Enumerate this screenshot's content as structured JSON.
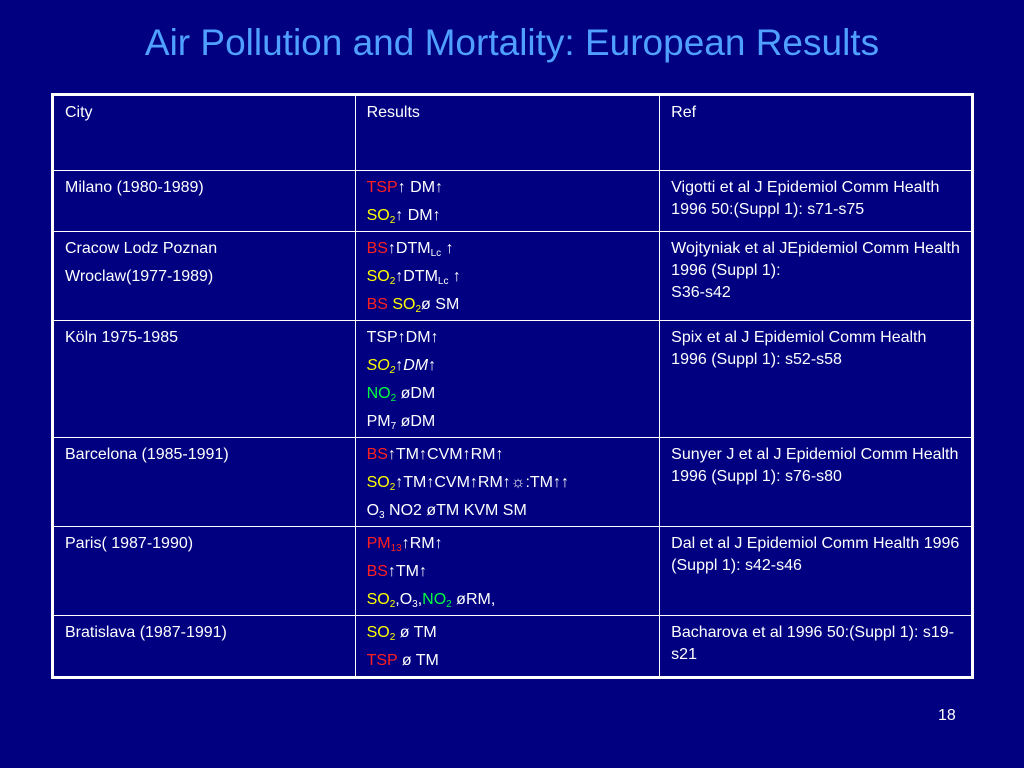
{
  "title": "Air Pollution and Mortality: European Results",
  "headers": {
    "city": "City",
    "results": "Results",
    "ref": "Ref"
  },
  "rows": [
    {
      "city": [
        "Milano (1980-1989)"
      ],
      "results": [
        [
          {
            "t": "TSP",
            "c": "red"
          },
          {
            "t": "↑ DM↑"
          }
        ],
        [
          {
            "t": "SO",
            "c": "yel"
          },
          {
            "t": "2",
            "c": "yel",
            "sub": true
          },
          {
            "t": "↑ DM↑"
          }
        ]
      ],
      "ref": [
        "Vigotti et al J Epidemiol Comm Health 1996 50:(Suppl 1): s71-s75"
      ]
    },
    {
      "city": [
        "Cracow Lodz Poznan",
        "Wroclaw(1977-1989)"
      ],
      "results": [
        [
          {
            "t": "BS",
            "c": "red"
          },
          {
            "t": "↑DTM"
          },
          {
            "t": "Lc",
            "sub": true
          },
          {
            "t": " ↑"
          }
        ],
        [
          {
            "t": "SO",
            "c": "yel"
          },
          {
            "t": "2",
            "c": "yel",
            "sub": true
          },
          {
            "t": "↑DTM"
          },
          {
            "t": "Lc",
            "sub": true
          },
          {
            "t": " ↑"
          }
        ],
        [
          {
            "t": "BS ",
            "c": "red"
          },
          {
            "t": "SO",
            "c": "yel"
          },
          {
            "t": "2",
            "c": "yel",
            "sub": true
          },
          {
            "t": "ø SM"
          }
        ]
      ],
      "ref": [
        "Wojtyniak et al JEpidemiol Comm Health 1996 (Suppl 1):",
        "S36-s42"
      ]
    },
    {
      "city": [
        "Köln 1975-1985"
      ],
      "results": [
        [
          {
            "t": "TSP↑DM↑"
          }
        ],
        [
          {
            "t": "SO",
            "c": "yel",
            "i": true
          },
          {
            "t": "2",
            "c": "yel",
            "sub": true,
            "i": true
          },
          {
            "t": "↑DM↑",
            "i": true
          }
        ],
        [
          {
            "t": "NO",
            "c": "grn"
          },
          {
            "t": "2",
            "c": "grn",
            "sub": true
          },
          {
            "t": " øDM"
          }
        ],
        [
          {
            "t": "PM"
          },
          {
            "t": "7",
            "sub": true
          },
          {
            "t": " øDM"
          }
        ]
      ],
      "ref": [
        "Spix et al J Epidemiol Comm Health 1996 (Suppl 1): s52-s58"
      ]
    },
    {
      "city": [
        "Barcelona (1985-1991)"
      ],
      "results": [
        [
          {
            "t": "BS",
            "c": "red"
          },
          {
            "t": "↑TM↑CVM↑RM↑"
          }
        ],
        [
          {
            "t": "SO",
            "c": "yel"
          },
          {
            "t": "2",
            "c": "yel",
            "sub": true
          },
          {
            "t": "↑TM↑CVM↑RM↑☼:TM↑↑"
          }
        ],
        [
          {
            "t": "O"
          },
          {
            "t": "3",
            "sub": true
          },
          {
            "t": " NO2 øTM KVM SM"
          }
        ]
      ],
      "ref": [
        "Sunyer J et al J Epidemiol Comm Health 1996 (Suppl 1): s76-s80"
      ]
    },
    {
      "city": [
        "Paris( 1987-1990)"
      ],
      "results": [
        [
          {
            "t": "PM",
            "c": "red"
          },
          {
            "t": "13",
            "c": "red",
            "sub": true
          },
          {
            "t": "↑RM↑"
          }
        ],
        [
          {
            "t": "BS",
            "c": "red"
          },
          {
            "t": "↑TM↑"
          }
        ],
        [
          {
            "t": "SO",
            "c": "yel"
          },
          {
            "t": "2",
            "c": "yel",
            "sub": true
          },
          {
            "t": ",O"
          },
          {
            "t": "3",
            "sub": true
          },
          {
            "t": ","
          },
          {
            "t": "NO",
            "c": "grn"
          },
          {
            "t": "2",
            "c": "grn",
            "sub": true
          },
          {
            "t": " øRM,"
          }
        ]
      ],
      "ref": [
        "Dal et al J Epidemiol Comm Health 1996 (Suppl 1): s42-s46"
      ]
    },
    {
      "city": [
        "Bratislava (1987-1991)"
      ],
      "results": [
        [
          {
            "t": "SO",
            "c": "yel"
          },
          {
            "t": "2",
            "c": "yel",
            "sub": true
          },
          {
            "t": " ø TM"
          }
        ],
        [
          {
            "t": "TSP",
            "c": "red"
          },
          {
            "t": " ø TM"
          }
        ]
      ],
      "ref": [
        "Bacharova et al 1996 50:(Suppl 1): s19-s21"
      ]
    }
  ],
  "page_number": "18",
  "colors": {
    "background": "#000080",
    "title": "#4fa0ff",
    "red": "#ff2020",
    "yellow": "#ffff00",
    "green": "#00ff40",
    "text": "#ffffff"
  }
}
